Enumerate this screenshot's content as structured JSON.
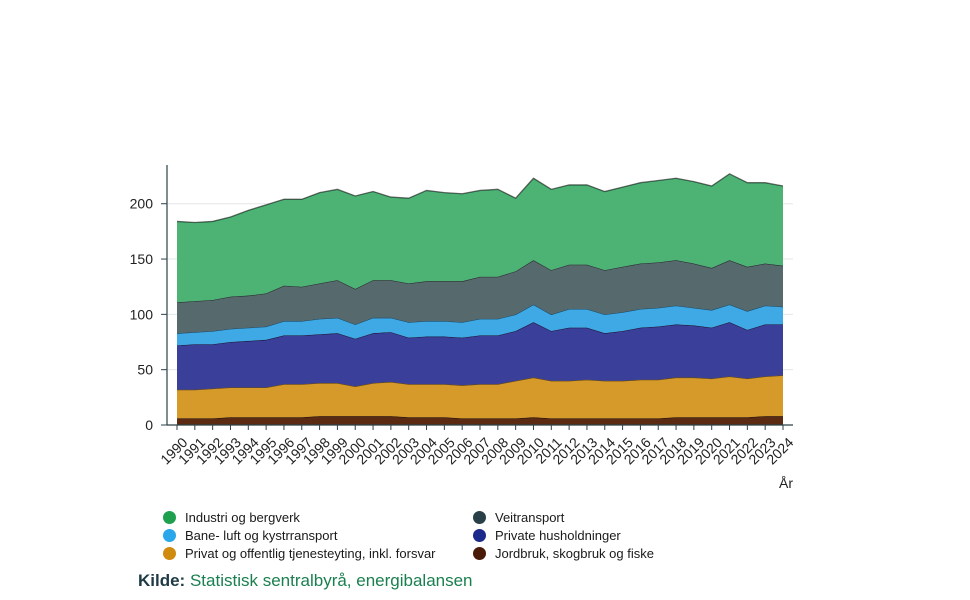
{
  "chart_data": {
    "type": "area",
    "stacked": true,
    "xlabel": "År",
    "ylabel": "",
    "ylim": [
      0,
      235
    ],
    "yticks": [
      0,
      50,
      100,
      150,
      200
    ],
    "grid": true,
    "legend_position": "bottom",
    "x": [
      1990,
      1991,
      1992,
      1993,
      1994,
      1995,
      1996,
      1997,
      1998,
      1999,
      2000,
      2001,
      2002,
      2003,
      2004,
      2005,
      2006,
      2007,
      2008,
      2009,
      2010,
      2011,
      2012,
      2013,
      2014,
      2015,
      2016,
      2017,
      2018,
      2019,
      2020,
      2021,
      2022,
      2023,
      2024
    ],
    "series": [
      {
        "name": "Jordbruk, skogbruk og fiske",
        "color": "#5b2a12",
        "values": [
          6,
          6,
          6,
          7,
          7,
          7,
          7,
          7,
          8,
          8,
          8,
          8,
          8,
          7,
          7,
          7,
          6,
          6,
          6,
          6,
          7,
          6,
          6,
          6,
          6,
          6,
          6,
          6,
          7,
          7,
          7,
          7,
          7,
          8,
          8
        ]
      },
      {
        "name": "Privat og offentlig tjenesteyting, inkl. forsvar",
        "color": "#d69a2a",
        "values": [
          26,
          26,
          27,
          27,
          27,
          27,
          30,
          30,
          30,
          30,
          27,
          30,
          31,
          30,
          30,
          30,
          30,
          31,
          31,
          34,
          36,
          34,
          34,
          35,
          34,
          34,
          35,
          35,
          36,
          36,
          35,
          37,
          35,
          36,
          37
        ]
      },
      {
        "name": "Private husholdninger",
        "color": "#3a3f9a",
        "values": [
          40,
          41,
          40,
          41,
          42,
          43,
          44,
          44,
          44,
          45,
          43,
          45,
          45,
          42,
          43,
          43,
          43,
          44,
          44,
          45,
          50,
          45,
          48,
          47,
          43,
          45,
          47,
          48,
          48,
          47,
          46,
          49,
          44,
          47,
          46
        ]
      },
      {
        "name": "Bane- luft og kystrransport",
        "color": "#3fa9e5",
        "values": [
          11,
          11,
          12,
          12,
          12,
          12,
          13,
          13,
          14,
          14,
          13,
          14,
          13,
          14,
          14,
          14,
          14,
          15,
          15,
          15,
          16,
          15,
          17,
          17,
          17,
          17,
          17,
          17,
          17,
          16,
          16,
          16,
          17,
          17,
          16
        ]
      },
      {
        "name": "Veitransport",
        "color": "#566a6e",
        "values": [
          28,
          28,
          28,
          29,
          29,
          30,
          32,
          31,
          32,
          34,
          32,
          34,
          34,
          35,
          36,
          36,
          37,
          38,
          38,
          39,
          40,
          40,
          40,
          40,
          40,
          41,
          41,
          41,
          41,
          40,
          38,
          40,
          40,
          38,
          37
        ]
      },
      {
        "name": "Industri og bergverk",
        "color": "#4db375",
        "values": [
          73,
          71,
          71,
          72,
          77,
          80,
          78,
          79,
          82,
          82,
          84,
          80,
          75,
          77,
          82,
          80,
          79,
          78,
          79,
          66,
          74,
          73,
          72,
          72,
          71,
          72,
          73,
          74,
          74,
          74,
          74,
          78,
          76,
          73,
          72
        ]
      }
    ]
  },
  "legend": [
    {
      "label": "Industri og bergverk",
      "color": "#1fa04f"
    },
    {
      "label": "Veitransport",
      "color": "#2a4048"
    },
    {
      "label": "Bane- luft og kystrransport",
      "color": "#2aa7ea"
    },
    {
      "label": "Private husholdninger",
      "color": "#1c2a8c"
    },
    {
      "label": "Privat og offentlig tjenesteyting, inkl. forsvar",
      "color": "#d08b0e"
    },
    {
      "label": "Jordbruk, skogbruk og fiske",
      "color": "#4a1a08"
    }
  ],
  "source": {
    "prefix": "Kilde:",
    "text": "Statistisk sentralbyrå, energibalansen"
  }
}
